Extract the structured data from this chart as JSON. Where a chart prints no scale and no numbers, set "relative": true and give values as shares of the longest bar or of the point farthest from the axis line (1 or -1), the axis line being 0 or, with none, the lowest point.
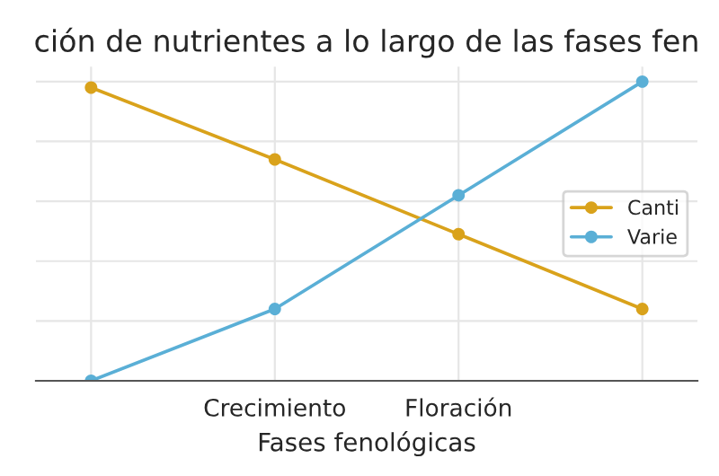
{
  "chart_data": {
    "type": "line",
    "title": "ción de nutrientes a lo largo de las fases fen",
    "xlabel": "Fases fenológicas",
    "categories": [
      null,
      "Crecimiento",
      "Floración",
      null
    ],
    "relative": true,
    "grid": true,
    "legend": "center right",
    "marker": "circle",
    "line_style": "solid",
    "tick_labels": "x",
    "series": [
      {
        "name": "Canti",
        "color": "#d9a21b",
        "values": [
          0.98,
          0.74,
          0.49,
          0.24
        ]
      },
      {
        "name": "Varie",
        "color": "#5aafd6",
        "values": [
          0.0,
          0.24,
          0.62,
          1.0
        ]
      }
    ]
  }
}
